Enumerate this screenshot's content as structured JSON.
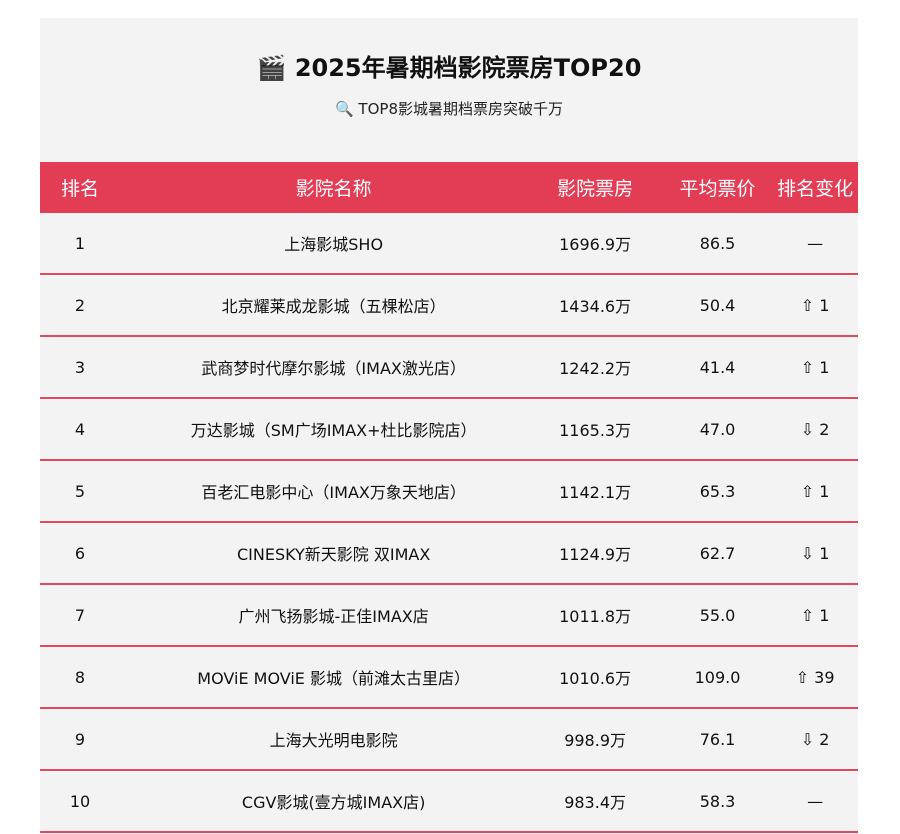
{
  "header": {
    "title": "🎬 2025年暑期档影院票房TOP20",
    "subtitle": "🔍 TOP8影城暑期档票房突破千万"
  },
  "table": {
    "columns": [
      "排名",
      "影院名称",
      "影院票房",
      "平均票价",
      "排名变化"
    ],
    "rows": [
      [
        "1",
        "上海影城SHO",
        "1696.9万",
        "86.5",
        "—"
      ],
      [
        "2",
        "北京耀莱成龙影城（五棵松店）",
        "1434.6万",
        "50.4",
        "⇧ 1"
      ],
      [
        "3",
        "武商梦时代摩尔影城（IMAX激光店）",
        "1242.2万",
        "41.4",
        "⇧ 1"
      ],
      [
        "4",
        "万达影城（SM广场IMAX+杜比影院店）",
        "1165.3万",
        "47.0",
        "⇩ 2"
      ],
      [
        "5",
        "百老汇电影中心（IMAX万象天地店）",
        "1142.1万",
        "65.3",
        "⇧ 1"
      ],
      [
        "6",
        "CINESKY新天影院 双IMAX",
        "1124.9万",
        "62.7",
        "⇩ 1"
      ],
      [
        "7",
        "广州飞扬影城-正佳IMAX店",
        "1011.8万",
        "55.0",
        "⇧ 1"
      ],
      [
        "8",
        "MOViE MOViE 影城（前滩太古里店）",
        "1010.6万",
        "109.0",
        "⇧ 39"
      ],
      [
        "9",
        "上海大光明电影院",
        "998.9万",
        "76.1",
        "⇩ 2"
      ],
      [
        "10",
        "CGV影城(壹方城IMAX店)",
        "983.4万",
        "58.3",
        "—"
      ]
    ]
  }
}
